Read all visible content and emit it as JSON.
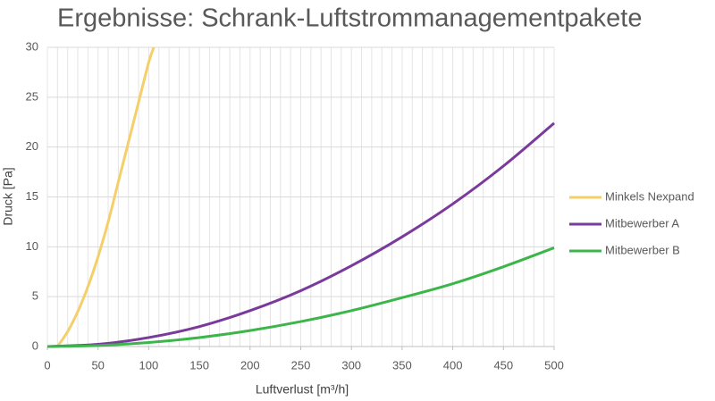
{
  "chart_data": {
    "type": "line",
    "title": "Ergebnisse: Schrank-Luftstrommanagementpakete",
    "x_label": "Luftverlust [m³/h]",
    "y_label": "Druck [Pa]",
    "xlim": [
      0,
      500
    ],
    "ylim": [
      0,
      30
    ],
    "xticks": [
      0,
      50,
      100,
      150,
      200,
      250,
      300,
      350,
      400,
      450,
      500
    ],
    "yticks": [
      0,
      5,
      10,
      15,
      20,
      25,
      30
    ],
    "x_minor_gridlines": [
      0,
      10,
      20,
      30,
      40,
      50,
      60,
      70,
      80,
      90,
      100,
      110,
      120,
      130,
      140,
      150,
      160,
      170,
      180,
      190,
      200,
      210,
      220,
      230,
      240,
      250,
      260,
      270,
      280,
      290,
      300,
      310,
      320,
      330,
      340,
      350,
      360,
      370,
      380,
      390,
      400,
      410,
      420,
      430,
      440,
      450,
      460,
      470,
      480,
      490,
      500
    ],
    "grid": true,
    "legend": "right",
    "series": [
      {
        "name": "Minkels Nexpand",
        "color": "#f5cf6a",
        "x": [
          10,
          20,
          30,
          40,
          50,
          60,
          70,
          80,
          90,
          100,
          105
        ],
        "values": [
          0,
          1.5,
          3.5,
          6,
          9,
          12.5,
          16.5,
          20.5,
          24.5,
          28.5,
          30
        ]
      },
      {
        "name": "Mitbewerber A",
        "color": "#7a3a9c",
        "x": [
          0,
          50,
          100,
          150,
          200,
          250,
          300,
          350,
          400,
          450,
          500
        ],
        "values": [
          0,
          0.22,
          0.9,
          2.0,
          3.6,
          5.6,
          8.1,
          11.0,
          14.3,
          18.1,
          22.4
        ]
      },
      {
        "name": "Mitbewerber B",
        "color": "#3cb54a",
        "x": [
          0,
          50,
          100,
          150,
          200,
          250,
          300,
          350,
          400,
          450,
          500
        ],
        "values": [
          0,
          0.1,
          0.4,
          0.9,
          1.6,
          2.5,
          3.6,
          4.9,
          6.3,
          8.0,
          9.9
        ]
      }
    ]
  }
}
